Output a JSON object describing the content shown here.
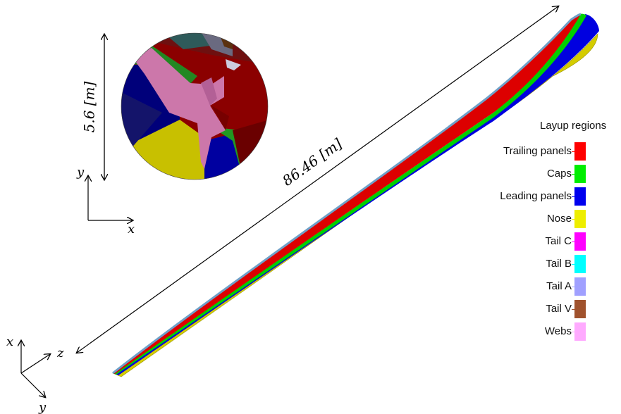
{
  "annotations": {
    "length_label": "86.46 [m]",
    "diameter_label": "5.6 [m]"
  },
  "axes_small": {
    "x": "x",
    "y": "y"
  },
  "axes_corner": {
    "x": "x",
    "y": "y",
    "z": "z"
  },
  "legend": {
    "title": "Layup regions",
    "items": [
      {
        "label": "Trailing panels",
        "color": "#ff0000"
      },
      {
        "label": "Caps",
        "color": "#00ee00"
      },
      {
        "label": "Leading panels",
        "color": "#0000ee"
      },
      {
        "label": "Nose",
        "color": "#eeee00"
      },
      {
        "label": "Tail C",
        "color": "#ff00ff"
      },
      {
        "label": "Tail B",
        "color": "#00ffff"
      },
      {
        "label": "Tail A",
        "color": "#a0a0ff"
      },
      {
        "label": "Tail V",
        "color": "#a0522d"
      },
      {
        "label": "Webs",
        "color": "#ffaaff"
      }
    ]
  }
}
